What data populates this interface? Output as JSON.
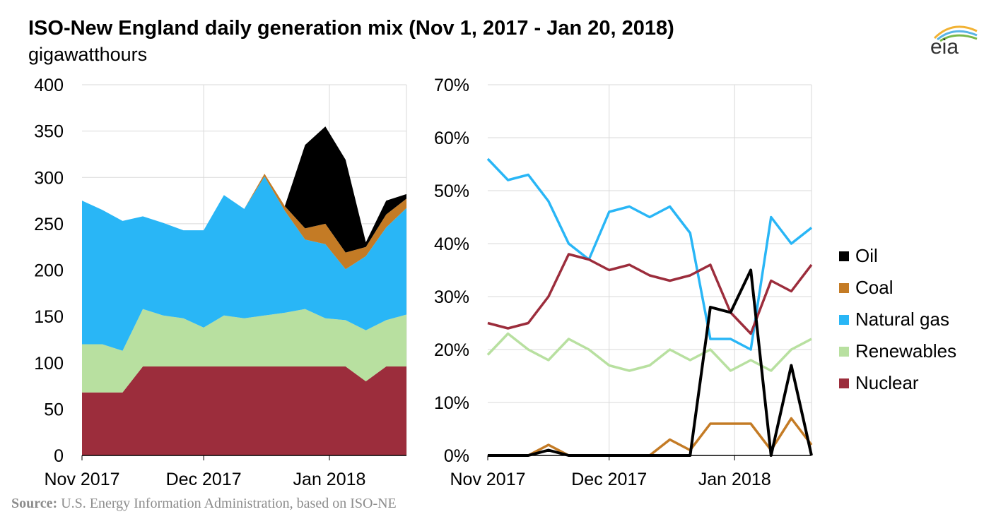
{
  "title": "ISO-New England daily generation mix (Nov 1, 2017 - Jan 20, 2018)",
  "subtitle": "gigawatthours",
  "source_label": "Source:",
  "source_text": "U.S. Energy Information Administration, based on ISO-NE",
  "logo_text": "eia",
  "colors": {
    "oil": "#000000",
    "coal": "#c47b25",
    "natural_gas": "#29b6f6",
    "renewables": "#b8e0a0",
    "nuclear": "#9c2d3c"
  },
  "legend": [
    {
      "label": "Oil",
      "key": "oil"
    },
    {
      "label": "Coal",
      "key": "coal"
    },
    {
      "label": "Natural gas",
      "key": "natural_gas"
    },
    {
      "label": "Renewables",
      "key": "renewables"
    },
    {
      "label": "Nuclear",
      "key": "nuclear"
    }
  ],
  "chart_data": [
    {
      "type": "area",
      "stacked": true,
      "unit": "gigawatthours",
      "x": [
        "2017-11-01",
        "2017-11-06",
        "2017-11-11",
        "2017-11-16",
        "2017-11-21",
        "2017-11-26",
        "2017-12-01",
        "2017-12-06",
        "2017-12-11",
        "2017-12-16",
        "2017-12-21",
        "2017-12-26",
        "2017-12-31",
        "2018-01-05",
        "2018-01-10",
        "2018-01-15",
        "2018-01-20"
      ],
      "x_ticks": [
        "Nov 2017",
        "Dec 2017",
        "Jan 2018"
      ],
      "y_ticks": [
        0,
        50,
        100,
        150,
        200,
        250,
        300,
        350,
        400
      ],
      "ylim": [
        0,
        400
      ],
      "grid": true,
      "series": [
        {
          "name": "Nuclear",
          "key": "nuclear",
          "values": [
            68,
            68,
            68,
            96,
            96,
            96,
            96,
            96,
            96,
            96,
            96,
            96,
            96,
            96,
            80,
            96,
            96
          ]
        },
        {
          "name": "Renewables",
          "key": "renewables",
          "values": [
            52,
            52,
            45,
            62,
            55,
            52,
            42,
            55,
            52,
            55,
            58,
            62,
            52,
            50,
            55,
            50,
            56
          ]
        },
        {
          "name": "Natural gas",
          "key": "natural_gas",
          "values": [
            155,
            145,
            140,
            100,
            100,
            95,
            105,
            130,
            118,
            150,
            110,
            75,
            80,
            55,
            80,
            100,
            115
          ]
        },
        {
          "name": "Coal",
          "key": "coal",
          "values": [
            0,
            0,
            0,
            0,
            0,
            0,
            0,
            0,
            0,
            3,
            5,
            12,
            22,
            18,
            10,
            14,
            10
          ]
        },
        {
          "name": "Oil",
          "key": "oil",
          "values": [
            0,
            0,
            0,
            0,
            0,
            0,
            0,
            0,
            0,
            0,
            0,
            90,
            105,
            100,
            5,
            15,
            5
          ]
        }
      ]
    },
    {
      "type": "line",
      "unit": "%",
      "x": [
        "2017-11-01",
        "2017-11-06",
        "2017-11-11",
        "2017-11-16",
        "2017-11-21",
        "2017-11-26",
        "2017-12-01",
        "2017-12-06",
        "2017-12-11",
        "2017-12-16",
        "2017-12-21",
        "2017-12-26",
        "2017-12-31",
        "2018-01-05",
        "2018-01-10",
        "2018-01-15",
        "2018-01-20"
      ],
      "x_ticks": [
        "Nov 2017",
        "Dec 2017",
        "Jan 2018"
      ],
      "y_ticks": [
        "0%",
        "10%",
        "20%",
        "30%",
        "40%",
        "50%",
        "60%",
        "70%"
      ],
      "ylim": [
        0,
        70
      ],
      "grid": true,
      "series": [
        {
          "name": "Oil",
          "key": "oil",
          "values": [
            0,
            0,
            0,
            1,
            0,
            0,
            0,
            0,
            0,
            0,
            0,
            28,
            27,
            35,
            0,
            17,
            0
          ]
        },
        {
          "name": "Coal",
          "key": "coal",
          "values": [
            0,
            0,
            0,
            2,
            0,
            0,
            0,
            0,
            0,
            3,
            1,
            6,
            6,
            6,
            1,
            7,
            2
          ]
        },
        {
          "name": "Natural gas",
          "key": "natural_gas",
          "values": [
            56,
            52,
            53,
            48,
            40,
            37,
            46,
            47,
            45,
            47,
            42,
            22,
            22,
            20,
            45,
            40,
            43
          ]
        },
        {
          "name": "Renewables",
          "key": "renewables",
          "values": [
            19,
            23,
            20,
            18,
            22,
            20,
            17,
            16,
            17,
            20,
            18,
            20,
            16,
            18,
            16,
            20,
            22
          ]
        },
        {
          "name": "Nuclear",
          "key": "nuclear",
          "values": [
            25,
            24,
            25,
            30,
            38,
            37,
            35,
            36,
            34,
            33,
            34,
            36,
            27,
            23,
            33,
            31,
            36
          ]
        }
      ]
    }
  ]
}
